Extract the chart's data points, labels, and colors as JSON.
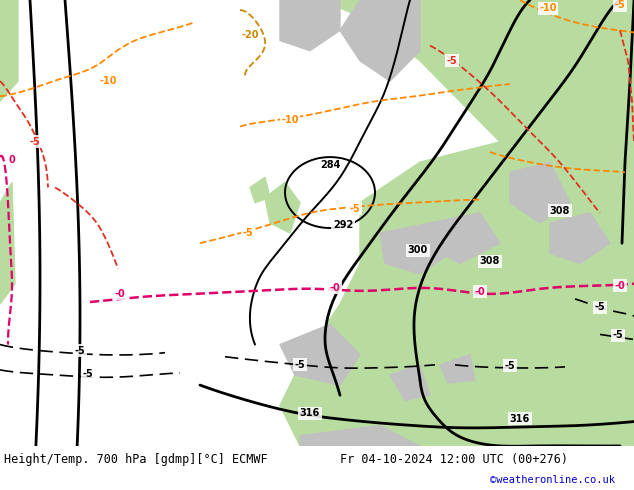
{
  "title_left": "Height/Temp. 700 hPa [gdmp][°C] ECMWF",
  "title_right": "Fr 04-10-2024 12:00 UTC (00+276)",
  "credit": "©weatheronline.co.uk",
  "bg_sea": "#e8e8e8",
  "bg_land_green": "#b8dca0",
  "bg_land_green2": "#c8e8b0",
  "bg_terrain_gray": "#c0c0c0",
  "figsize": [
    6.34,
    4.9
  ],
  "dpi": 100
}
